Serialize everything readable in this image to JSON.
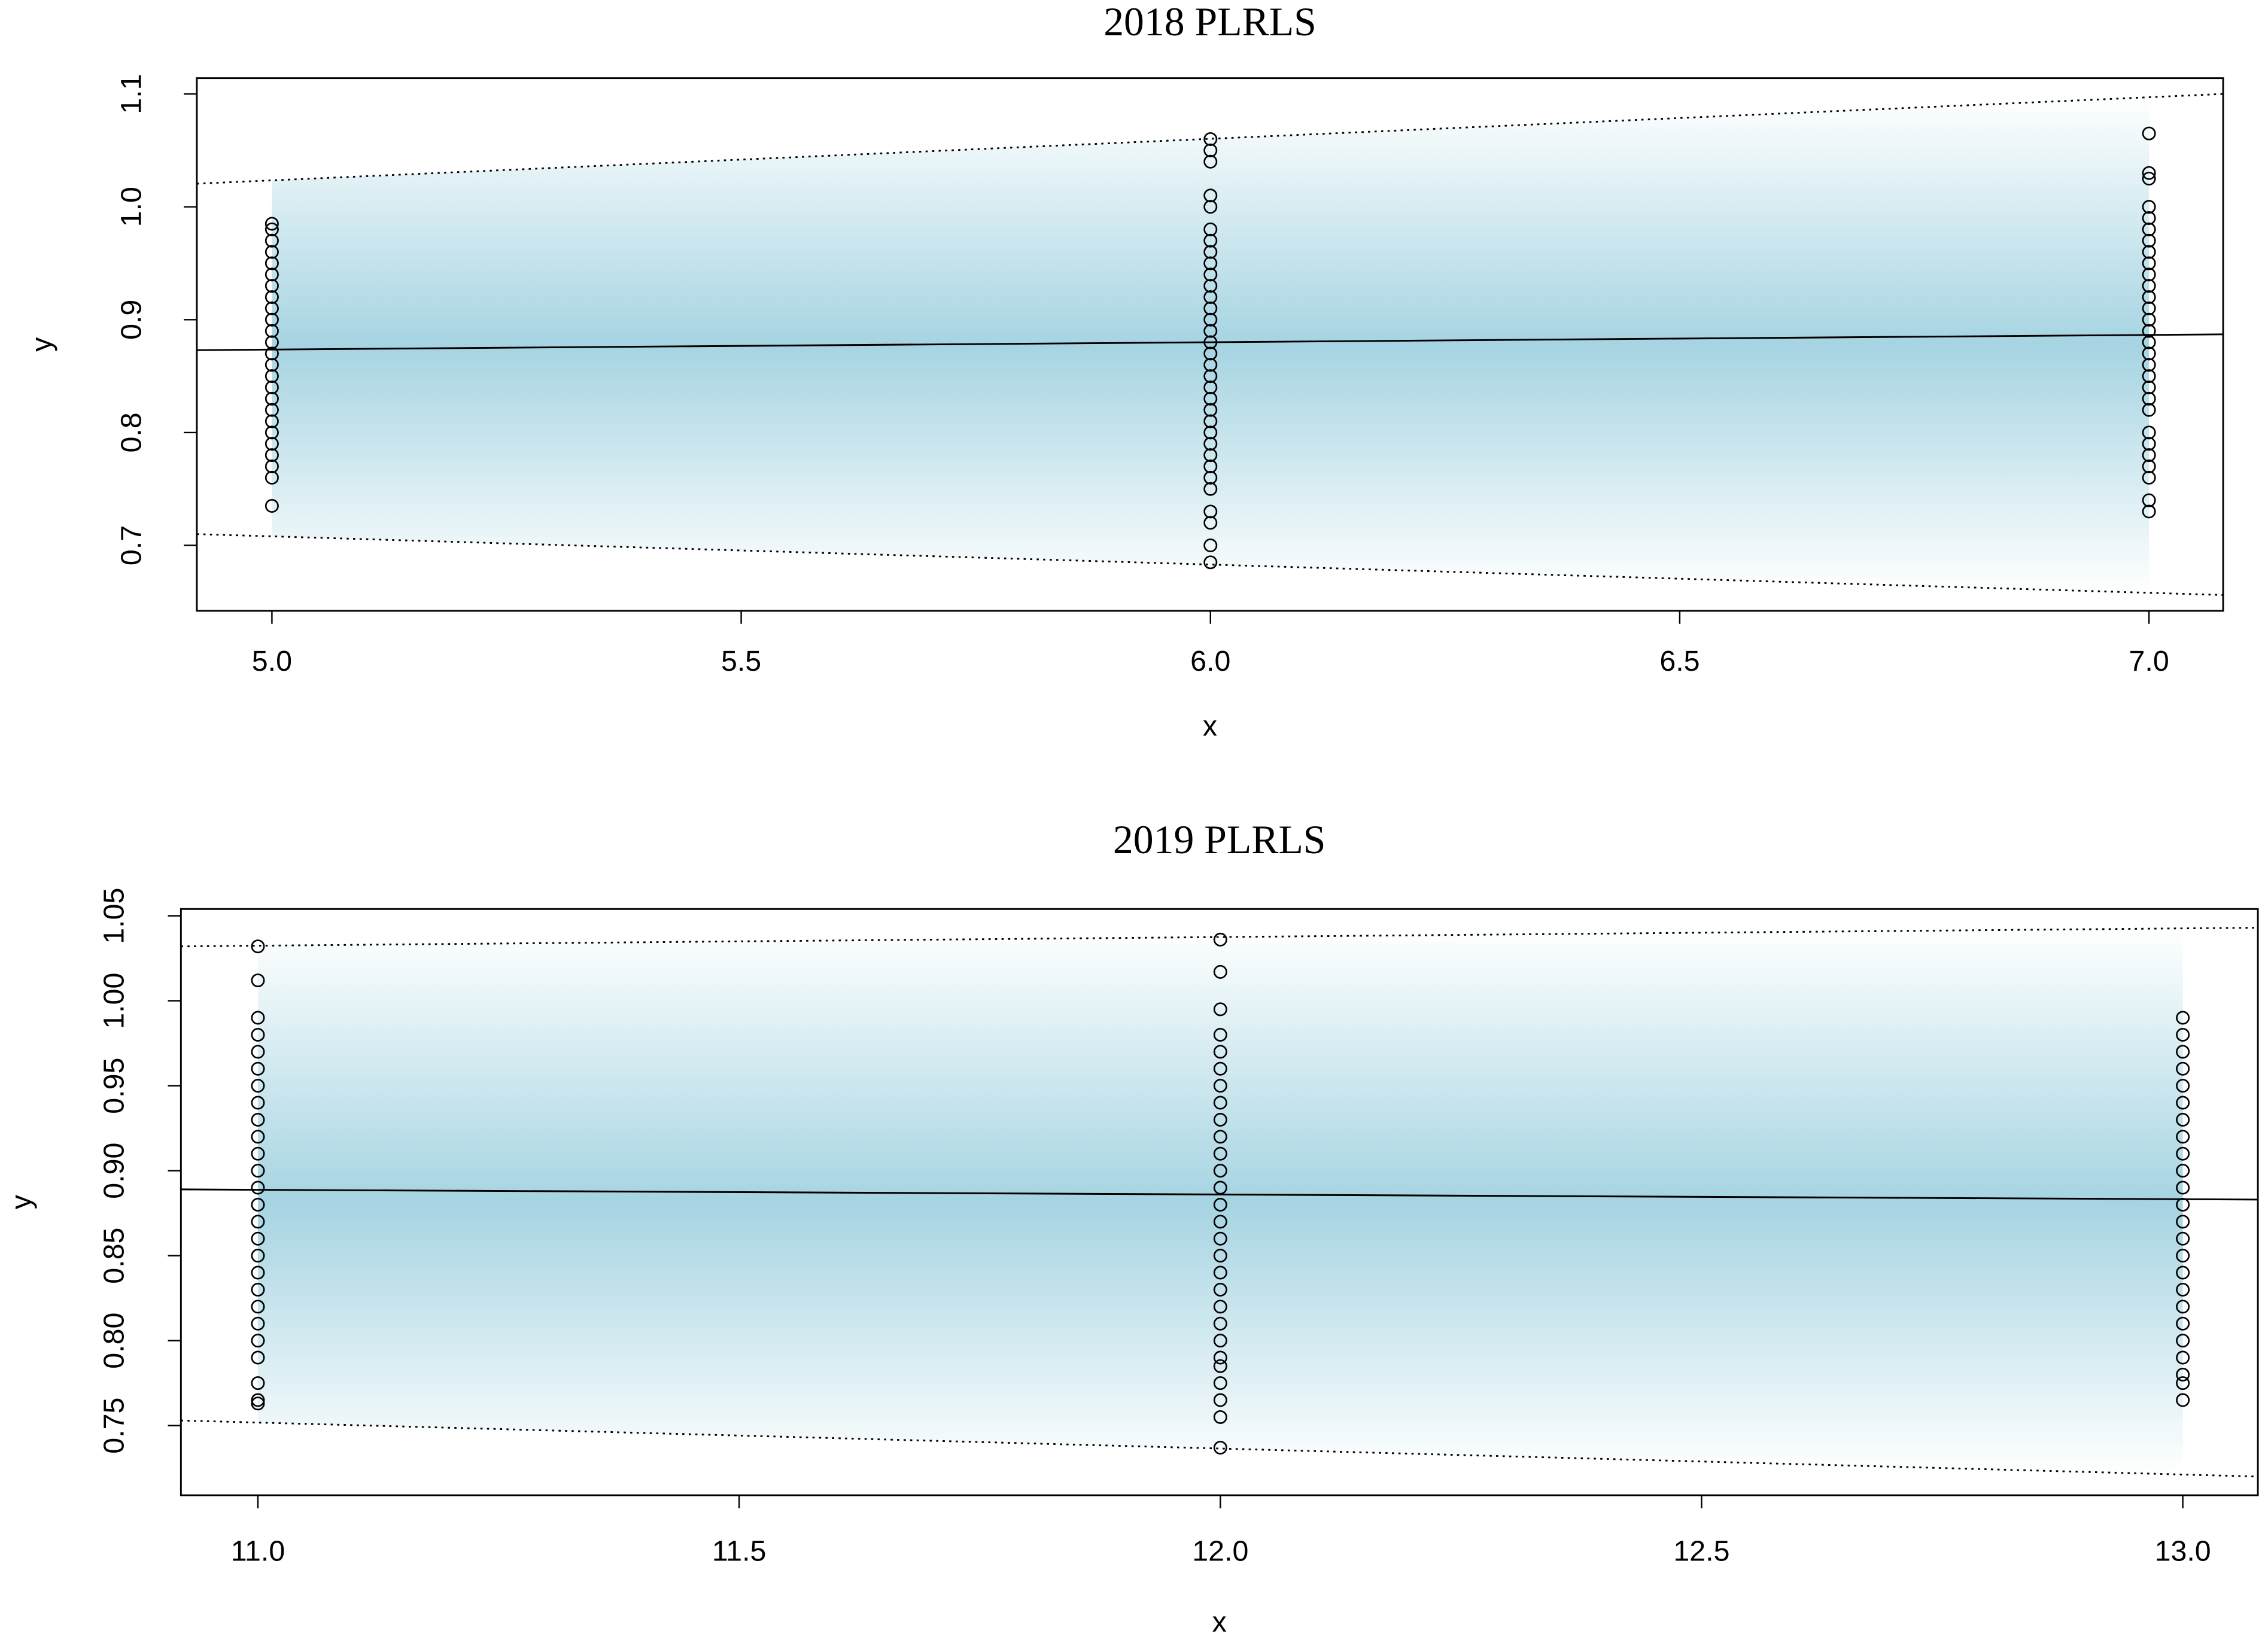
{
  "chart_data": [
    {
      "type": "scatter",
      "title": "2018 PLRLS",
      "xlabel": "x",
      "ylabel": "y",
      "xlim": [
        4.92,
        7.079
      ],
      "ylim": [
        0.642,
        1.114
      ],
      "xticks": [
        {
          "value": 5,
          "label": "5.0"
        },
        5.5,
        {
          "value": 6,
          "label": "6.0"
        },
        6.5,
        {
          "value": 7,
          "label": "7.0"
        }
      ],
      "yticks": [
        0.7,
        0.8,
        0.9,
        {
          "value": 1,
          "label": "1.0"
        },
        1.1
      ],
      "shade_color": "#a6d4e2",
      "series": [
        {
          "type": "scatter",
          "color": "#000000",
          "x": [
            5,
            5,
            5,
            5,
            5,
            5,
            5,
            5,
            5,
            5,
            5,
            5,
            5,
            5,
            5,
            5,
            5,
            5,
            5,
            5,
            5,
            5,
            5,
            5,
            5,
            6,
            6,
            6,
            6,
            6,
            6,
            6,
            6,
            6,
            6,
            6,
            6,
            6,
            6,
            6,
            6,
            6,
            6,
            6,
            6,
            6,
            6,
            6,
            6,
            6,
            6,
            6,
            6,
            6,
            6,
            6,
            6,
            6,
            7,
            7,
            7,
            7,
            7,
            7,
            7,
            7,
            7,
            7,
            7,
            7,
            7,
            7,
            7,
            7,
            7,
            7,
            7,
            7,
            7,
            7,
            7,
            7,
            7,
            7,
            7,
            7,
            7
          ],
          "values": [
            0.985,
            0.98,
            0.97,
            0.96,
            0.95,
            0.94,
            0.93,
            0.92,
            0.91,
            0.9,
            0.89,
            0.88,
            0.87,
            0.86,
            0.85,
            0.84,
            0.83,
            0.82,
            0.81,
            0.8,
            0.79,
            0.78,
            0.77,
            0.76,
            0.735,
            1.06,
            1.05,
            1.04,
            1.01,
            1.0,
            0.98,
            0.97,
            0.96,
            0.95,
            0.94,
            0.93,
            0.92,
            0.91,
            0.9,
            0.89,
            0.88,
            0.87,
            0.86,
            0.85,
            0.84,
            0.83,
            0.82,
            0.81,
            0.8,
            0.79,
            0.78,
            0.77,
            0.76,
            0.75,
            0.73,
            0.72,
            0.7,
            0.685,
            1.065,
            1.03,
            1.025,
            1.0,
            0.99,
            0.98,
            0.97,
            0.96,
            0.95,
            0.94,
            0.93,
            0.92,
            0.91,
            0.9,
            0.89,
            0.88,
            0.87,
            0.86,
            0.85,
            0.84,
            0.83,
            0.82,
            0.8,
            0.79,
            0.78,
            0.77,
            0.76,
            0.74,
            0.73
          ]
        },
        {
          "type": "line",
          "style": "solid",
          "color": "#000000",
          "x": [
            4.92,
            7.079
          ],
          "values": [
            0.873,
            0.887
          ]
        },
        {
          "type": "line",
          "style": "dotted",
          "color": "#000000",
          "x": [
            4.92,
            7.079
          ],
          "values": [
            1.0205,
            1.1
          ]
        },
        {
          "type": "line",
          "style": "dotted",
          "color": "#000000",
          "x": [
            4.92,
            7.079
          ],
          "values": [
            0.71,
            0.656
          ]
        }
      ]
    },
    {
      "type": "scatter",
      "title": "2019 PLRLS",
      "xlabel": "x",
      "ylabel": "y",
      "xlim": [
        10.92,
        13.078
      ],
      "ylim": [
        0.709,
        1.054
      ],
      "xticks": [
        {
          "value": 11,
          "label": "11.0"
        },
        11.5,
        {
          "value": 12,
          "label": "12.0"
        },
        12.5,
        {
          "value": 13,
          "label": "13.0"
        }
      ],
      "yticks": [
        0.75,
        {
          "value": 0.8,
          "label": "0.80"
        },
        0.85,
        {
          "value": 0.9,
          "label": "0.90"
        },
        0.95,
        {
          "value": 1,
          "label": "1.00"
        },
        1.05
      ],
      "shade_color": "#a6d4e2",
      "series": [
        {
          "type": "scatter",
          "color": "#000000",
          "x": [
            11,
            11,
            11,
            11,
            11,
            11,
            11,
            11,
            11,
            11,
            11,
            11,
            11,
            11,
            11,
            11,
            11,
            11,
            11,
            11,
            11,
            11,
            11,
            11,
            11,
            11,
            12,
            12,
            12,
            12,
            12,
            12,
            12,
            12,
            12,
            12,
            12,
            12,
            12,
            12,
            12,
            12,
            12,
            12,
            12,
            12,
            12,
            12,
            12,
            12,
            12,
            12,
            12,
            12,
            13,
            13,
            13,
            13,
            13,
            13,
            13,
            13,
            13,
            13,
            13,
            13,
            13,
            13,
            13,
            13,
            13,
            13,
            13,
            13,
            13,
            13,
            13,
            13
          ],
          "values": [
            1.032,
            1.012,
            0.99,
            0.98,
            0.97,
            0.96,
            0.95,
            0.94,
            0.93,
            0.92,
            0.91,
            0.9,
            0.89,
            0.88,
            0.87,
            0.86,
            0.85,
            0.84,
            0.83,
            0.82,
            0.81,
            0.8,
            0.79,
            0.775,
            0.765,
            0.763,
            1.036,
            1.017,
            0.995,
            0.98,
            0.97,
            0.96,
            0.95,
            0.94,
            0.93,
            0.92,
            0.91,
            0.9,
            0.89,
            0.88,
            0.87,
            0.86,
            0.85,
            0.84,
            0.83,
            0.82,
            0.81,
            0.8,
            0.79,
            0.785,
            0.775,
            0.765,
            0.755,
            0.737,
            0.99,
            0.98,
            0.97,
            0.96,
            0.95,
            0.94,
            0.93,
            0.92,
            0.91,
            0.9,
            0.89,
            0.88,
            0.87,
            0.86,
            0.85,
            0.84,
            0.83,
            0.82,
            0.81,
            0.8,
            0.79,
            0.78,
            0.775,
            0.765
          ]
        },
        {
          "type": "line",
          "style": "solid",
          "color": "#000000",
          "x": [
            10.92,
            13.078
          ],
          "values": [
            0.889,
            0.883
          ]
        },
        {
          "type": "line",
          "style": "dotted",
          "color": "#000000",
          "x": [
            10.92,
            13.078
          ],
          "values": [
            1.032,
            1.043
          ]
        },
        {
          "type": "line",
          "style": "dotted",
          "color": "#000000",
          "x": [
            10.92,
            13.078
          ],
          "values": [
            0.753,
            0.72
          ]
        }
      ]
    }
  ]
}
